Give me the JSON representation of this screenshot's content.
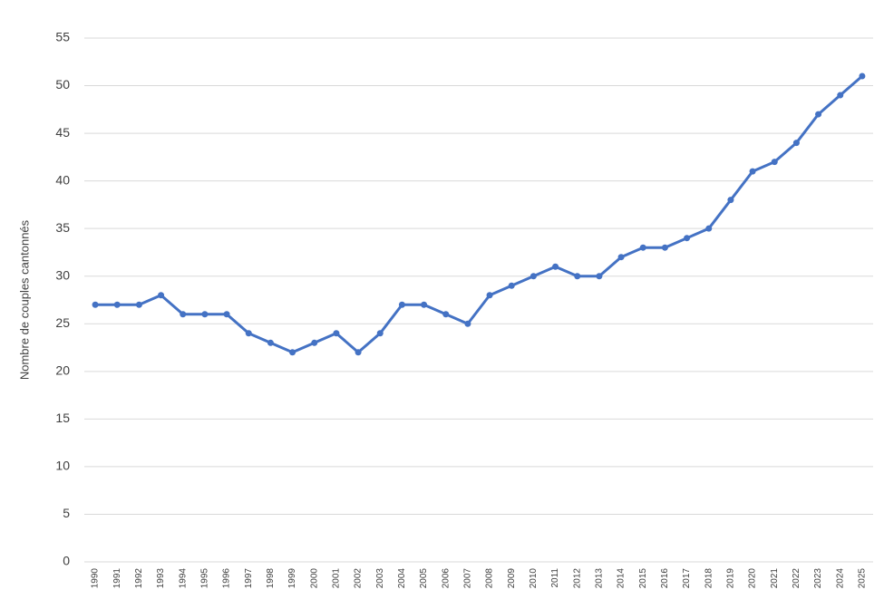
{
  "chart_data": {
    "type": "line",
    "y_label": "Nombre de couples cantonnés",
    "categories": [
      "1990",
      "1991",
      "1992",
      "1993",
      "1994",
      "1995",
      "1996",
      "1997",
      "1998",
      "1999",
      "2000",
      "2001",
      "2002",
      "2003",
      "2004",
      "2005",
      "2006",
      "2007",
      "2008",
      "2009",
      "2010",
      "2011",
      "2012",
      "2013",
      "2014",
      "2015",
      "2016",
      "2017",
      "2018",
      "2019",
      "2020",
      "2021",
      "2022",
      "2023",
      "2024",
      "2025"
    ],
    "values": [
      27,
      27,
      27,
      28,
      26,
      26,
      26,
      24,
      23,
      22,
      23,
      24,
      22,
      24,
      27,
      27,
      26,
      25,
      28,
      29,
      30,
      31,
      30,
      30,
      32,
      33,
      33,
      34,
      35,
      38,
      41,
      42,
      44,
      47,
      49,
      51
    ],
    "color": "#4472c4",
    "ylim": [
      0,
      55
    ],
    "yticks": [
      0,
      5,
      10,
      15,
      20,
      25,
      30,
      35,
      40,
      45,
      50,
      55
    ],
    "grid": true
  }
}
